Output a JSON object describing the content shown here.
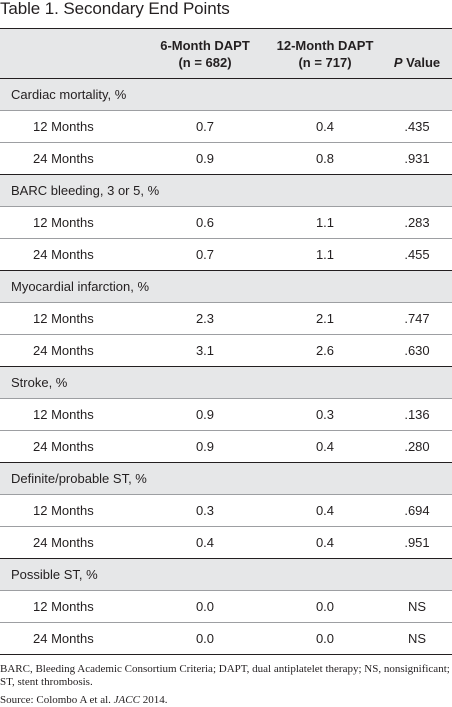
{
  "title": {
    "label": "Table 1.",
    "text": "Secondary End Points"
  },
  "columns": {
    "col1_line1": "6-Month DAPT",
    "col1_line2": "(n = 682)",
    "col2_line1": "12-Month DAPT",
    "col2_line2": "(n = 717)",
    "p_italic": "P",
    "p_rest": " Value"
  },
  "groups": [
    {
      "label": "Cardiac mortality, %",
      "rows": [
        {
          "label": "12 Months",
          "a": "0.7",
          "b": "0.4",
          "p": ".435"
        },
        {
          "label": "24 Months",
          "a": "0.9",
          "b": "0.8",
          "p": ".931"
        }
      ]
    },
    {
      "label": "BARC bleeding, 3 or 5, %",
      "rows": [
        {
          "label": "12 Months",
          "a": "0.6",
          "b": "1.1",
          "p": ".283"
        },
        {
          "label": "24 Months",
          "a": "0.7",
          "b": "1.1",
          "p": ".455"
        }
      ]
    },
    {
      "label": "Myocardial infarction, %",
      "rows": [
        {
          "label": "12 Months",
          "a": "2.3",
          "b": "2.1",
          "p": ".747"
        },
        {
          "label": "24 Months",
          "a": "3.1",
          "b": "2.6",
          "p": ".630"
        }
      ]
    },
    {
      "label": "Stroke, %",
      "rows": [
        {
          "label": "12 Months",
          "a": "0.9",
          "b": "0.3",
          "p": ".136"
        },
        {
          "label": "24 Months",
          "a": "0.9",
          "b": "0.4",
          "p": ".280"
        }
      ]
    },
    {
      "label": "Definite/probable ST, %",
      "rows": [
        {
          "label": "12 Months",
          "a": "0.3",
          "b": "0.4",
          "p": ".694"
        },
        {
          "label": "24 Months",
          "a": "0.4",
          "b": "0.4",
          "p": ".951"
        }
      ]
    },
    {
      "label": "Possible ST, %",
      "rows": [
        {
          "label": "12 Months",
          "a": "0.0",
          "b": "0.0",
          "p": "NS"
        },
        {
          "label": "24 Months",
          "a": "0.0",
          "b": "0.0",
          "p": "NS"
        }
      ]
    }
  ],
  "footnote": {
    "abbrev": "BARC, Bleeding Academic Consortium Criteria; DAPT, dual antiplatelet therapy; NS, nonsignificant; ST, stent thrombosis.",
    "source_prefix": "Source: Colombo A et al. ",
    "source_journal": "JACC",
    "source_year": " 2014."
  }
}
